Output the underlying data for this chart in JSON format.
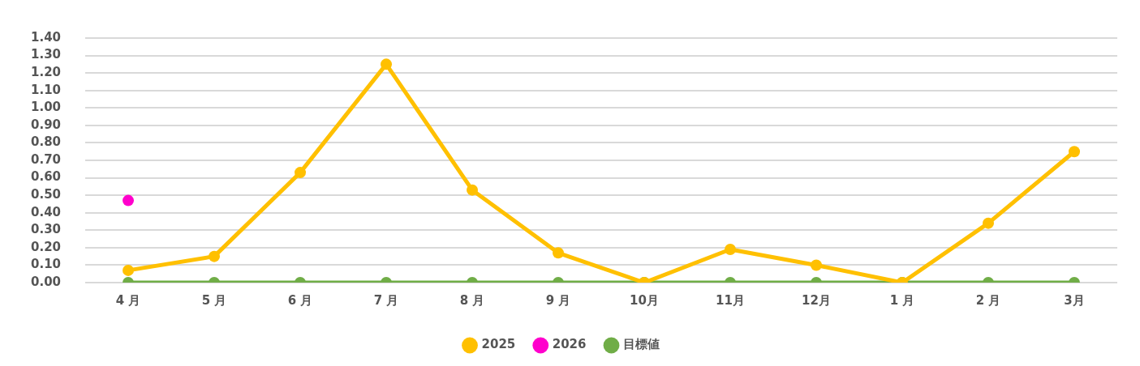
{
  "chart_data": {
    "type": "line",
    "categories": [
      "4 月",
      "5 月",
      "6 月",
      "7 月",
      "8 月",
      "9 月",
      "10月",
      "11月",
      "12月",
      "1 月",
      "2 月",
      "3月"
    ],
    "series": [
      {
        "name": "2025",
        "color": "#ffc000",
        "values": [
          0.07,
          0.15,
          0.63,
          1.25,
          0.53,
          0.17,
          0.0,
          0.19,
          0.1,
          0.0,
          0.34,
          0.75
        ]
      },
      {
        "name": "2026",
        "color": "#ff00cc",
        "values": [
          0.47,
          null,
          null,
          null,
          null,
          null,
          null,
          null,
          null,
          null,
          null,
          null
        ]
      },
      {
        "name": "目標値",
        "color": "#70ad47",
        "values": [
          0,
          0,
          0,
          0,
          0,
          0,
          0,
          0,
          0,
          0,
          0,
          0
        ]
      }
    ],
    "ylim": [
      0,
      1.4
    ],
    "yticks": [
      {
        "value": 0,
        "label": "0.00"
      },
      {
        "value": 0.1,
        "label": "0.10"
      },
      {
        "value": 0.2,
        "label": "0.20"
      },
      {
        "value": 0.3,
        "label": "0.30"
      },
      {
        "value": 0.4,
        "label": "0.40"
      },
      {
        "value": 0.5,
        "label": "0.50"
      },
      {
        "value": 0.6,
        "label": "0.60"
      },
      {
        "value": 0.7,
        "label": "0.70"
      },
      {
        "value": 0.8,
        "label": "0.80"
      },
      {
        "value": 0.9,
        "label": "0.90"
      },
      {
        "value": 1.0,
        "label": "1.00"
      },
      {
        "value": 1.1,
        "label": "1.10"
      },
      {
        "value": 1.2,
        "label": "1.20"
      },
      {
        "value": 1.3,
        "label": "1.30"
      },
      {
        "value": 1.4,
        "label": "1.40"
      }
    ],
    "grid": "y",
    "legend": "bottom",
    "marker": "circle",
    "line_style": "solid"
  }
}
